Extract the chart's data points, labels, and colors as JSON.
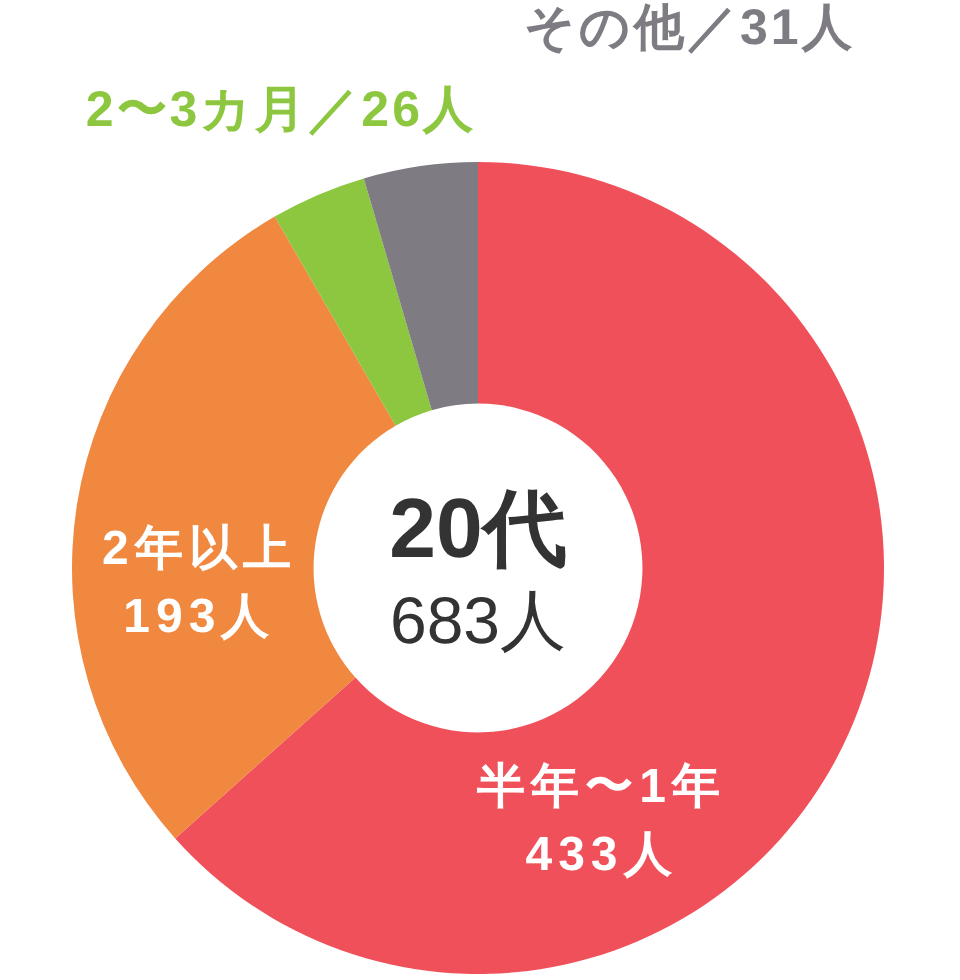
{
  "chart_data": {
    "type": "donut",
    "title": "20代",
    "subtitle": "683人",
    "categories": [
      "半年〜1年",
      "2年以上",
      "2〜3カ月／26人",
      "その他／31人"
    ],
    "values": [
      433,
      193,
      26,
      31
    ],
    "colors": [
      "#f0505a",
      "#f0883f",
      "#8dc63f",
      "#7e7b82"
    ],
    "value_labels": [
      "433人",
      "193人",
      null,
      null
    ]
  }
}
